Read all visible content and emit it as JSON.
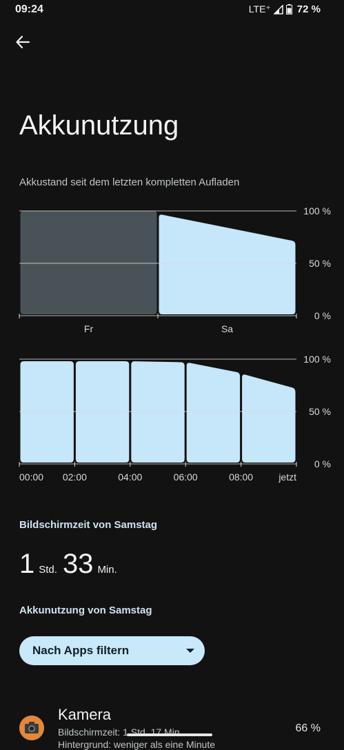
{
  "status_bar": {
    "time": "09:24",
    "network": "LTE⁺",
    "battery_percent": "72 %",
    "battery_level": 0.72
  },
  "header": {
    "title": "Akkunutzung"
  },
  "battery_history": {
    "caption": "Akkustand seit dem letzten kompletten Aufladen",
    "y_ticks": [
      "100 %",
      "50 %",
      "0 %"
    ]
  },
  "chart_data": [
    {
      "type": "area",
      "title": "",
      "categories": [
        "Fr",
        "Sa"
      ],
      "y_unit": "%",
      "ylim": [
        0,
        100
      ],
      "yticks": [
        "100 %",
        "50 %",
        "0 %"
      ],
      "segments": [
        {
          "label": "Fr",
          "start": 100,
          "end": 100,
          "style": "dim"
        },
        {
          "label": "Sa",
          "start": 97,
          "end": 71,
          "style": "highlight"
        }
      ]
    },
    {
      "type": "area",
      "title": "",
      "x_ticks": [
        "00:00",
        "02:00",
        "04:00",
        "06:00",
        "08:00",
        "jetzt"
      ],
      "y_unit": "%",
      "ylim": [
        0,
        100
      ],
      "yticks": [
        "100 %",
        "50 %",
        "0 %"
      ],
      "segments": [
        {
          "from": "00:00",
          "to": "02:00",
          "start": 98,
          "end": 98
        },
        {
          "from": "02:00",
          "to": "04:00",
          "start": 98,
          "end": 98
        },
        {
          "from": "04:00",
          "to": "06:00",
          "start": 98,
          "end": 97
        },
        {
          "from": "06:00",
          "to": "08:00",
          "start": 97,
          "end": 87
        },
        {
          "from": "08:00",
          "to": "jetzt",
          "start": 86,
          "end": 72
        }
      ]
    }
  ],
  "screen_time": {
    "heading": "Bildschirmzeit von Samstag",
    "hours": "1",
    "hours_unit": "Std.",
    "minutes": "33",
    "minutes_unit": "Min."
  },
  "usage": {
    "heading": "Akkunutzung von Samstag",
    "filter_label": "Nach Apps filtern"
  },
  "apps": [
    {
      "name": "Kamera",
      "detail_line1": "Bildschirmzeit: 1 Std. 17 Min.",
      "detail_line2": "Hintergrund: weniger als eine Minute",
      "percent": "66 %",
      "icon": "camera-icon"
    }
  ],
  "colors": {
    "background": "#121212",
    "bar_fill": "#c6e6fa",
    "bar_dim": "#495357",
    "accent_text": "#cde4ef",
    "filter_button": "#c9e8f9"
  }
}
